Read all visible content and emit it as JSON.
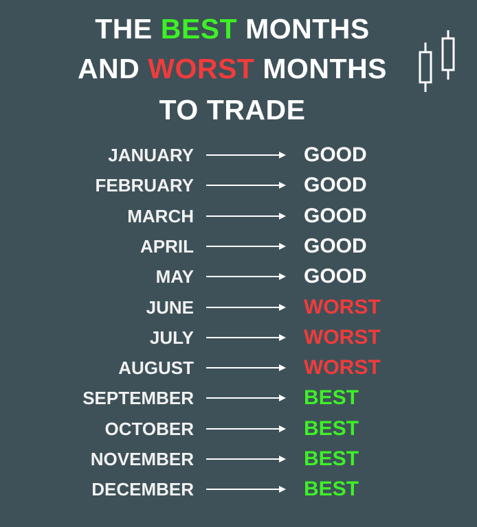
{
  "title": {
    "lines": [
      [
        {
          "text": "THE",
          "color": "#ffffff"
        },
        {
          "text": "BEST",
          "color": "#3ef026"
        },
        {
          "text": "MONTHS",
          "color": "#ffffff"
        }
      ],
      [
        {
          "text": "AND",
          "color": "#ffffff"
        },
        {
          "text": "WORST",
          "color": "#f23b3b"
        },
        {
          "text": "MONTHS",
          "color": "#ffffff"
        }
      ],
      [
        {
          "text": "TO",
          "color": "#ffffff"
        },
        {
          "text": "TRADE",
          "color": "#ffffff"
        }
      ]
    ]
  },
  "rows": [
    {
      "month": "JANUARY",
      "rating": "GOOD",
      "color": "#ffffff"
    },
    {
      "month": "FEBRUARY",
      "rating": "GOOD",
      "color": "#ffffff"
    },
    {
      "month": "MARCH",
      "rating": "GOOD",
      "color": "#ffffff"
    },
    {
      "month": "APRIL",
      "rating": "GOOD",
      "color": "#ffffff"
    },
    {
      "month": "MAY",
      "rating": "GOOD",
      "color": "#ffffff"
    },
    {
      "month": "JUNE",
      "rating": "WORST",
      "color": "#f23b3b"
    },
    {
      "month": "JULY",
      "rating": "WORST",
      "color": "#f23b3b"
    },
    {
      "month": "AUGUST",
      "rating": "WORST",
      "color": "#f23b3b"
    },
    {
      "month": "SEPTEMBER",
      "rating": "BEST",
      "color": "#3ef026"
    },
    {
      "month": "OCTOBER",
      "rating": "BEST",
      "color": "#3ef026"
    },
    {
      "month": "NOVEMBER",
      "rating": "BEST",
      "color": "#3ef026"
    },
    {
      "month": "DECEMBER",
      "rating": "BEST",
      "color": "#3ef026"
    }
  ]
}
